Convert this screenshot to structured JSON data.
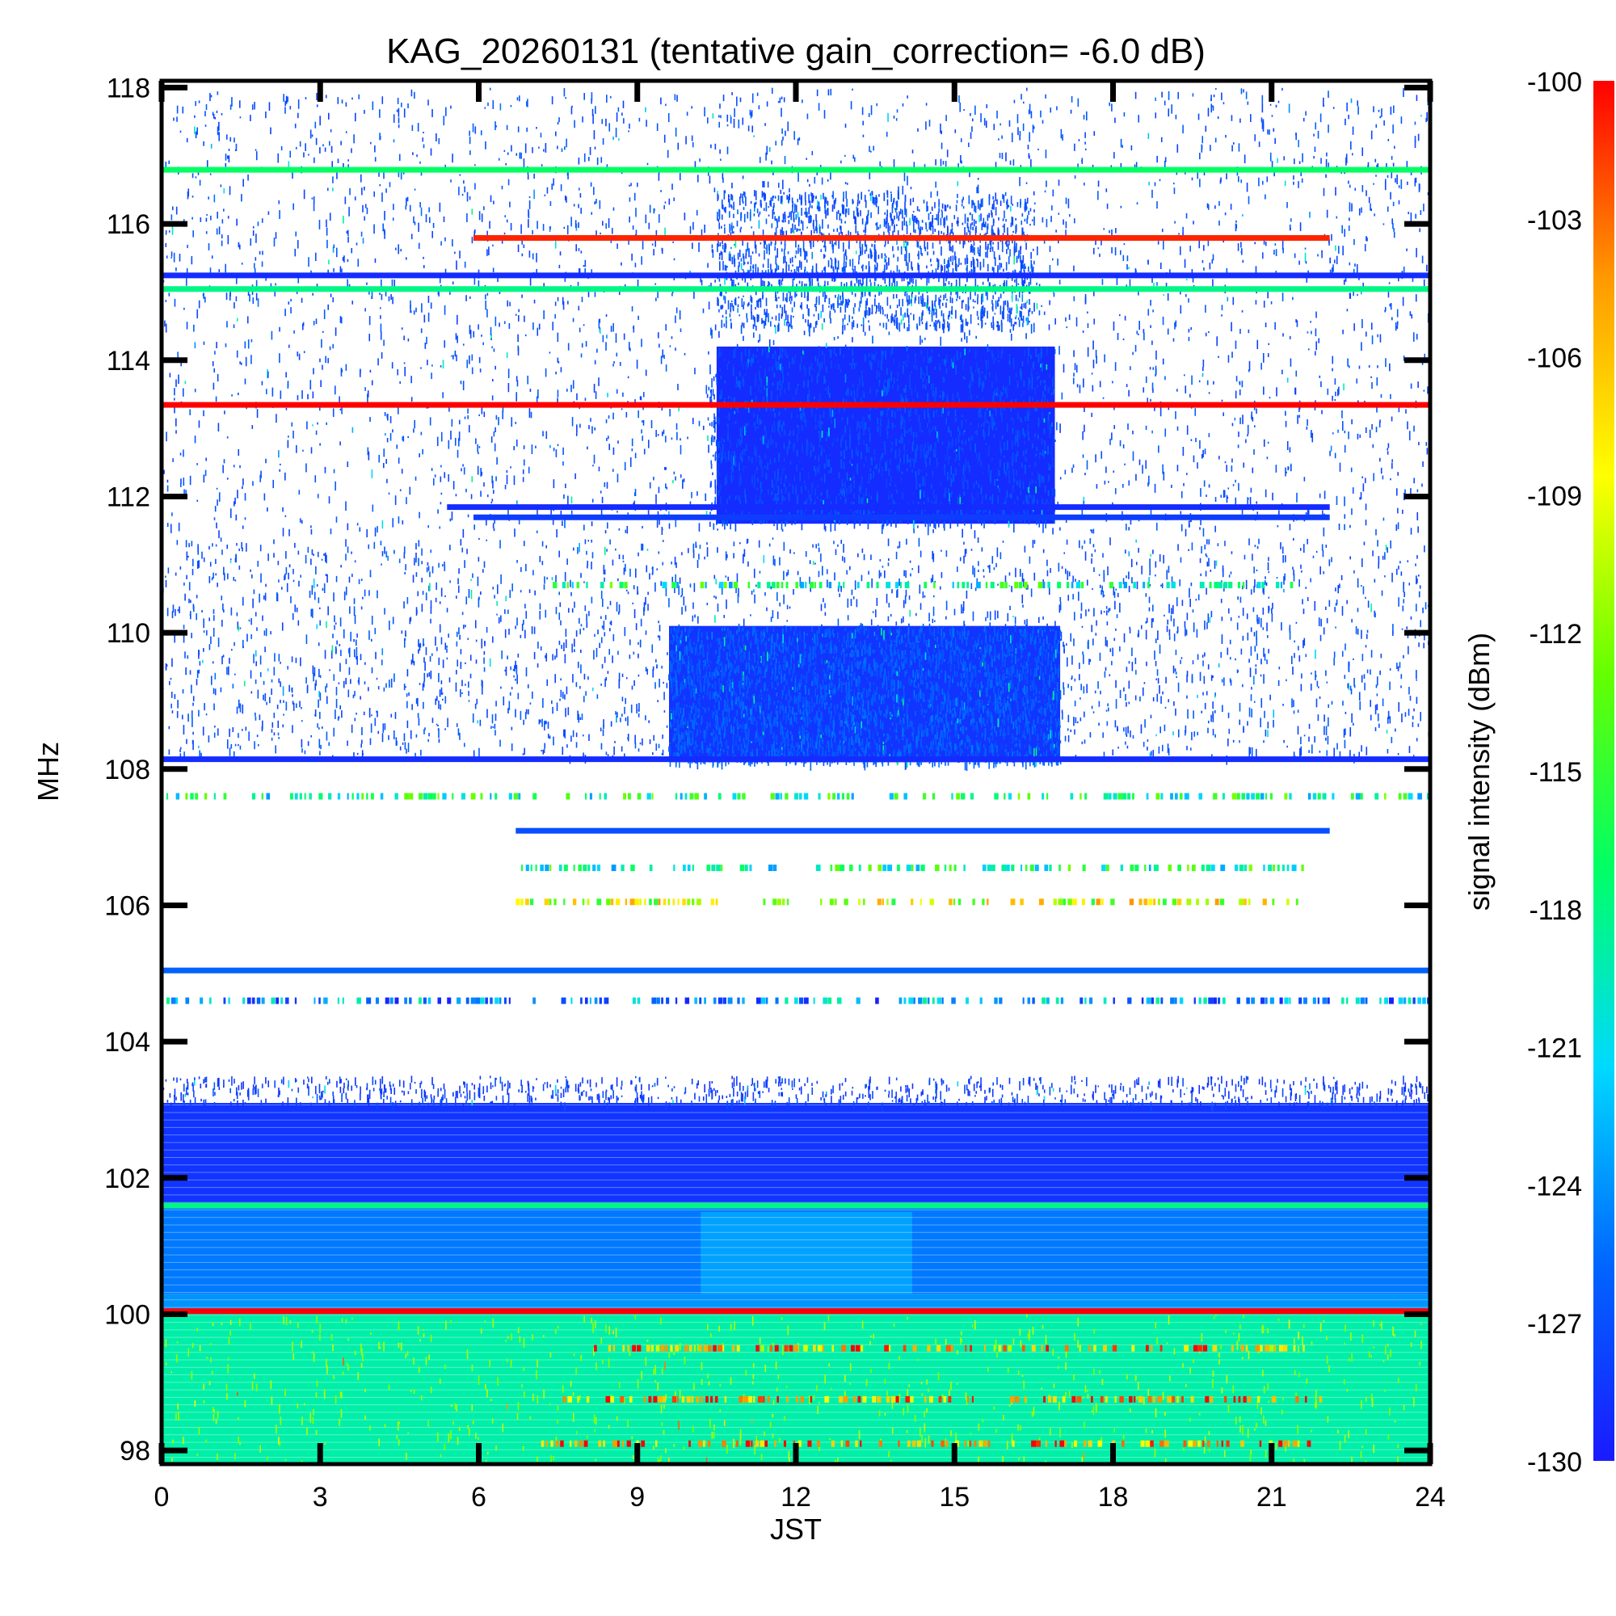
{
  "chart_data": {
    "type": "heatmap",
    "title": "KAG_20260131 (tentative gain_correction= -6.0 dB)",
    "xlabel": "JST",
    "ylabel": "MHz",
    "colorbar_label": "signal intensity (dBm)",
    "xlim": [
      0,
      24
    ],
    "ylim": [
      97.8,
      118.1
    ],
    "x_ticks": [
      "0",
      "3",
      "6",
      "9",
      "12",
      "15",
      "18",
      "21",
      "24"
    ],
    "y_ticks": [
      "98",
      "100",
      "102",
      "104",
      "106",
      "108",
      "110",
      "112",
      "114",
      "116",
      "118"
    ],
    "colorbar_ticks": [
      "-100",
      "-103",
      "-106",
      "-109",
      "-112",
      "-115",
      "-118",
      "-121",
      "-124",
      "-127",
      "-130"
    ],
    "color_range_dbm": [
      -130,
      -100
    ],
    "colormap": [
      "#1a1aff",
      "#0066ff",
      "#00d9ff",
      "#00ff66",
      "#66ff00",
      "#ffff00",
      "#ff9900",
      "#ff0000"
    ],
    "grid": false,
    "bands": [
      {
        "x": [
          0,
          24
        ],
        "y": [
          97.8,
          100.0
        ],
        "dbm": -119
      },
      {
        "x": [
          0,
          24
        ],
        "y": [
          100.0,
          100.3
        ],
        "dbm": -124
      },
      {
        "x": [
          0,
          24
        ],
        "y": [
          100.3,
          101.6
        ],
        "dbm": -125
      },
      {
        "x": [
          0,
          24
        ],
        "y": [
          101.6,
          103.1
        ],
        "dbm": -128.5
      },
      {
        "x": [
          10.2,
          14.2
        ],
        "y": [
          100.3,
          101.5
        ],
        "dbm": -123.5
      },
      {
        "x": [
          9.6,
          17.0
        ],
        "y": [
          108.1,
          110.1
        ],
        "dbm": -128.5
      },
      {
        "x": [
          10.5,
          16.9
        ],
        "y": [
          111.6,
          114.2
        ],
        "dbm": -129
      }
    ],
    "lines": [
      {
        "x": [
          0,
          24
        ],
        "y": 116.8,
        "dbm": -117
      },
      {
        "x": [
          5.9,
          22.1
        ],
        "y": 115.8,
        "dbm": -101
      },
      {
        "x": [
          0,
          24
        ],
        "y": 115.25,
        "dbm": -129
      },
      {
        "x": [
          0,
          24
        ],
        "y": 115.05,
        "dbm": -118
      },
      {
        "x": [
          0,
          24
        ],
        "y": 113.35,
        "dbm": -100
      },
      {
        "x": [
          5.4,
          22.1
        ],
        "y": 111.85,
        "dbm": -129
      },
      {
        "x": [
          5.9,
          22.1
        ],
        "y": 111.7,
        "dbm": -128
      },
      {
        "x": [
          0,
          24
        ],
        "y": 108.15,
        "dbm": -129
      },
      {
        "x": [
          6.7,
          22.1
        ],
        "y": 107.1,
        "dbm": -127
      },
      {
        "x": [
          0,
          24
        ],
        "y": 105.05,
        "dbm": -126
      },
      {
        "x": [
          0,
          24
        ],
        "y": 101.6,
        "dbm": -118
      },
      {
        "x": [
          0,
          24
        ],
        "y": 100.05,
        "dbm": -100
      }
    ],
    "dotted_lines": [
      {
        "x": [
          0,
          24
        ],
        "y": 107.6,
        "dbm": -118
      },
      {
        "x": [
          6.7,
          21.5
        ],
        "y": 106.05,
        "dbm": -110
      },
      {
        "x": [
          0,
          24
        ],
        "y": 104.6,
        "dbm": -124
      },
      {
        "x": [
          6.8,
          21.6
        ],
        "y": 106.55,
        "dbm": -118
      },
      {
        "x": [
          7.4,
          21.4
        ],
        "y": 110.7,
        "dbm": -118
      },
      {
        "x": [
          8.0,
          21.6
        ],
        "y": 99.5,
        "dbm": -105
      },
      {
        "x": [
          7.0,
          21.8
        ],
        "y": 98.1,
        "dbm": -104
      },
      {
        "x": [
          7.5,
          22.0
        ],
        "y": 98.75,
        "dbm": -104
      }
    ],
    "scatter_regions": [
      {
        "x": [
          0,
          24
        ],
        "y": [
          111.5,
          118.0
        ],
        "count": 3200,
        "dbm": -128
      },
      {
        "x": [
          0,
          24
        ],
        "y": [
          108.2,
          111.4
        ],
        "count": 2600,
        "dbm": -128
      },
      {
        "x": [
          9.6,
          17.0
        ],
        "y": [
          108.1,
          110.1
        ],
        "count": 2800,
        "dbm": -127
      },
      {
        "x": [
          10.3,
          16.9
        ],
        "y": [
          111.6,
          114.2
        ],
        "count": 1400,
        "dbm": -128
      },
      {
        "x": [
          10.5,
          16.5
        ],
        "y": [
          114.5,
          116.5
        ],
        "count": 1500,
        "dbm": -128
      },
      {
        "x": [
          0,
          24
        ],
        "y": [
          103.1,
          103.5
        ],
        "count": 900,
        "dbm": -129
      },
      {
        "x": [
          0,
          24
        ],
        "y": [
          97.8,
          100.0
        ],
        "count": 700,
        "dbm": -112
      }
    ]
  }
}
